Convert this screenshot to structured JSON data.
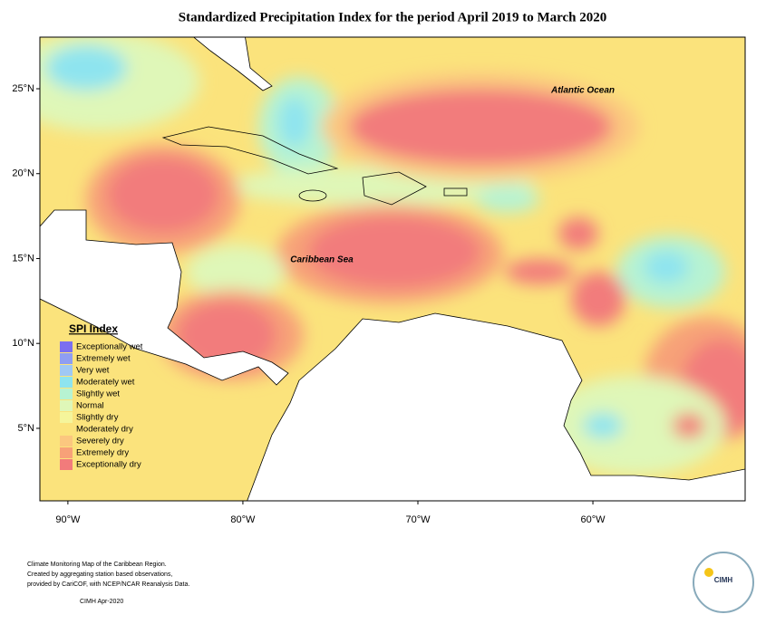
{
  "title": "Standardized Precipitation Index for the period April 2019 to March 2020",
  "map": {
    "lonlim": [
      -91.6,
      -51.3
    ],
    "latlim": [
      0.73,
      28.04
    ],
    "lat_ticks": [
      {
        "value": 5,
        "label": "5°N"
      },
      {
        "value": 10,
        "label": "10°N"
      },
      {
        "value": 15,
        "label": "15°N"
      },
      {
        "value": 20,
        "label": "20°N"
      },
      {
        "value": 25,
        "label": "25°N"
      }
    ],
    "lon_ticks": [
      {
        "value": -90,
        "label": "90°W"
      },
      {
        "value": -80,
        "label": "80°W"
      },
      {
        "value": -70,
        "label": "70°W"
      },
      {
        "value": -60,
        "label": "60°W"
      }
    ]
  },
  "labels": {
    "atlantic": "Atlantic Ocean",
    "caribbean": "Caribbean Sea"
  },
  "legend": {
    "title": "SPI Index",
    "items": [
      {
        "name": "Exceptionally wet",
        "color": "#7b6ff0"
      },
      {
        "name": "Extremely wet",
        "color": "#8f9ef2"
      },
      {
        "name": "Very wet",
        "color": "#9fc8f4"
      },
      {
        "name": "Moderately wet",
        "color": "#8ee4ef"
      },
      {
        "name": "Slightly wet",
        "color": "#b7f3d2"
      },
      {
        "name": "Normal",
        "color": "#dff7b8"
      },
      {
        "name": "Slightly dry",
        "color": "#f5f59b"
      },
      {
        "name": "Moderately dry",
        "color": "#fbe37c"
      },
      {
        "name": "Severely dry",
        "color": "#fbc77f"
      },
      {
        "name": "Extremely dry",
        "color": "#f7a178"
      },
      {
        "name": "Exceptionally dry",
        "color": "#f27b7b"
      }
    ]
  },
  "footer": {
    "lines": [
      "Climate Monitoring Map of the Caribbean Region.",
      "Created by aggregating station based observations,",
      "provided by CariCOF, with NCEP/NCAR Reanalysis Data."
    ],
    "credit": "CIMH Apr-2020"
  },
  "logo": {
    "name": "CIMH"
  }
}
